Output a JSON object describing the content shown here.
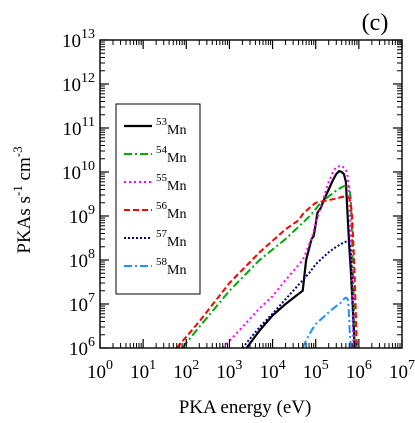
{
  "chart_data": {
    "type": "line",
    "panel_label": "(c)",
    "xlabel": "PKA energy (eV)",
    "ylabel_parts": [
      "PKAs s",
      "-1",
      " cm",
      "-3"
    ],
    "xscale": "log",
    "yscale": "log",
    "xlim": [
      1,
      10000000
    ],
    "ylim": [
      1000000,
      10000000000000
    ],
    "x_ticks": [
      {
        "base": "10",
        "exp": "0",
        "value": 1
      },
      {
        "base": "10",
        "exp": "1",
        "value": 10
      },
      {
        "base": "10",
        "exp": "2",
        "value": 100
      },
      {
        "base": "10",
        "exp": "3",
        "value": 1000
      },
      {
        "base": "10",
        "exp": "4",
        "value": 10000
      },
      {
        "base": "10",
        "exp": "5",
        "value": 100000
      },
      {
        "base": "10",
        "exp": "6",
        "value": 1000000
      },
      {
        "base": "10",
        "exp": "7",
        "value": 10000000
      }
    ],
    "y_ticks": [
      {
        "base": "10",
        "exp": "6",
        "value": 1000000
      },
      {
        "base": "10",
        "exp": "7",
        "value": 10000000
      },
      {
        "base": "10",
        "exp": "8",
        "value": 100000000
      },
      {
        "base": "10",
        "exp": "9",
        "value": 1000000000
      },
      {
        "base": "10",
        "exp": "10",
        "value": 10000000000
      },
      {
        "base": "10",
        "exp": "11",
        "value": 100000000000
      },
      {
        "base": "10",
        "exp": "12",
        "value": 1000000000000
      },
      {
        "base": "10",
        "exp": "13",
        "value": 10000000000000
      }
    ],
    "grid": false,
    "legend_position": "top-left",
    "series": [
      {
        "mass": "53",
        "element": "Mn",
        "color": "#000000",
        "dash": "none",
        "x": [
          2500,
          5000,
          10000,
          20000,
          40000,
          50000,
          60000,
          80000,
          90000,
          110000,
          130000,
          160000,
          200000,
          250000,
          300000,
          350000,
          400000,
          450000,
          500000,
          550000,
          600000,
          650000,
          700000,
          750000,
          800000
        ],
        "y": [
          1000000,
          2500000,
          5500000,
          10000000,
          17000000,
          20000000,
          100000000,
          300000000,
          350000000,
          1200000000,
          1500000000,
          2500000000,
          4000000000,
          6500000000,
          9000000000,
          10500000000,
          10000000000,
          9000000000,
          6000000000,
          1000000000,
          200000000,
          60000000,
          15000000,
          4000000,
          1000000
        ]
      },
      {
        "mass": "54",
        "element": "Mn",
        "color": "#00aa00",
        "dash": "8,3,2,3",
        "x": [
          80,
          200,
          1000,
          5000,
          20000,
          50000,
          80000,
          120000,
          200000,
          300000,
          400000,
          500000,
          600000,
          650000,
          700000,
          750000,
          800000
        ],
        "y": [
          1000000,
          3000000,
          20000000,
          100000000,
          300000000,
          700000000,
          1100000000,
          1800000000,
          2800000000,
          3800000000,
          4500000000,
          5000000000,
          4500000000,
          2500000000,
          300000000,
          20000000,
          1000000
        ]
      },
      {
        "mass": "55",
        "element": "Mn",
        "color": "#ff00ff",
        "dash": "2,3",
        "x": [
          700,
          2000,
          5000,
          10000,
          20000,
          50000,
          80000,
          100000,
          150000,
          200000,
          250000,
          300000,
          400000,
          500000,
          550000,
          600000,
          650000,
          700000,
          750000
        ],
        "y": [
          1000000,
          3000000,
          8000000,
          15000000,
          35000000,
          100000000,
          300000000,
          700000000,
          2500000000,
          6000000000,
          10000000000,
          13000000000,
          14000000000,
          11000000000,
          8000000000,
          3000000000,
          300000000,
          20000000,
          1000000
        ]
      },
      {
        "mass": "56",
        "element": "Mn",
        "color": "#ff0000",
        "dash": "6,3",
        "x": [
          60,
          200,
          1000,
          5000,
          20000,
          40000,
          50000,
          70000,
          100000,
          200000,
          300000,
          400000,
          500000,
          550000,
          600000,
          650000,
          700000,
          750000,
          800000,
          850000,
          900000
        ],
        "y": [
          1000000,
          4000000,
          30000000,
          150000000,
          500000000,
          800000000,
          1100000000,
          1500000000,
          2000000000,
          2300000000,
          2500000000,
          2700000000,
          2800000000,
          2700000000,
          2500000000,
          2000000000,
          900000000,
          200000000,
          40000000,
          6000000,
          1000000
        ]
      },
      {
        "mass": "57",
        "element": "Mn",
        "color": "#000080",
        "dash": "2,2",
        "x": [
          2000,
          5000,
          10000,
          30000,
          70000,
          100000,
          200000,
          300000,
          450000,
          550000,
          600000,
          650000,
          700000,
          750000,
          800000
        ],
        "y": [
          1000000,
          3000000,
          6000000,
          20000000,
          50000000,
          80000000,
          150000000,
          200000000,
          250000000,
          270000000,
          250000000,
          150000000,
          30000000,
          4000000,
          1000000
        ]
      },
      {
        "mass": "58",
        "element": "Mn",
        "color": "#1e90ff",
        "dash": "8,3,2,3",
        "x": [
          50000,
          60000,
          80000,
          100000,
          150000,
          200000,
          300000,
          400000,
          450000,
          500000,
          550000,
          580000,
          620000,
          660000
        ],
        "y": [
          1000000,
          1500000,
          2500000,
          3500000,
          5000000,
          6500000,
          9000000,
          11000000,
          13000000,
          14000000,
          13000000,
          8000000,
          2000000,
          1000000
        ]
      }
    ]
  }
}
